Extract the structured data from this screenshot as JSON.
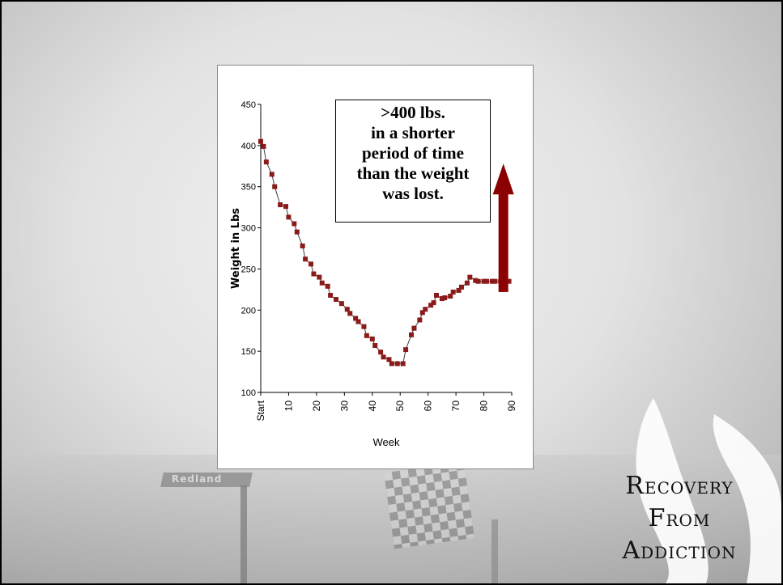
{
  "background": {
    "sign_text": "Redland"
  },
  "logo": {
    "line1": {
      "cap": "R",
      "rest": "ECOVERY"
    },
    "line2": {
      "cap": "F",
      "rest": "ROM"
    },
    "line3": {
      "cap": "A",
      "rest": "DDICTION"
    }
  },
  "callout": {
    "lines": [
      ">400 lbs.",
      "in a shorter",
      "period of time",
      "than the weight",
      "was lost."
    ]
  },
  "colors": {
    "marker": "#8b1a1a",
    "arrow": "#8b0000",
    "line": "#404040"
  },
  "chart_data": {
    "type": "line",
    "xlabel": "Week",
    "ylabel": "Weight in Lbs",
    "ylim": [
      100,
      450
    ],
    "xlim": [
      0,
      90
    ],
    "yticks": [
      100,
      150,
      200,
      250,
      300,
      350,
      400,
      450
    ],
    "xticks": [
      {
        "value": 0,
        "label": "Start"
      },
      {
        "value": 10,
        "label": "10"
      },
      {
        "value": 20,
        "label": "20"
      },
      {
        "value": 30,
        "label": "30"
      },
      {
        "value": 40,
        "label": "40"
      },
      {
        "value": 50,
        "label": "50"
      },
      {
        "value": 60,
        "label": "60"
      },
      {
        "value": 70,
        "label": "70"
      },
      {
        "value": 80,
        "label": "80"
      },
      {
        "value": 90,
        "label": "90"
      }
    ],
    "series": [
      {
        "x": [
          0,
          1,
          2,
          4,
          5,
          7,
          9,
          10,
          12,
          13,
          15,
          16,
          18,
          19,
          21,
          22,
          24,
          25,
          27,
          29,
          31,
          32,
          34,
          35,
          37,
          38,
          40,
          41,
          43,
          44,
          46,
          47,
          49,
          51,
          52,
          54,
          55,
          57,
          58,
          59,
          61,
          62,
          63,
          65,
          66,
          68,
          69,
          71,
          72,
          74,
          75,
          77,
          78,
          80,
          81,
          83,
          84,
          86,
          87,
          89
        ],
        "y": [
          405,
          399,
          380,
          365,
          350,
          328,
          326,
          313,
          305,
          295,
          278,
          262,
          256,
          244,
          240,
          233,
          229,
          218,
          213,
          208,
          201,
          196,
          190,
          186,
          180,
          169,
          165,
          157,
          149,
          143,
          140,
          135,
          135,
          135,
          152,
          170,
          178,
          188,
          197,
          201,
          206,
          209,
          218,
          214,
          215,
          217,
          222,
          224,
          228,
          233,
          240,
          236,
          235,
          235,
          235,
          235,
          235,
          235,
          235,
          235
        ]
      }
    ],
    "arrow": {
      "x": 87,
      "y_from": 222,
      "y_to": 378
    }
  }
}
